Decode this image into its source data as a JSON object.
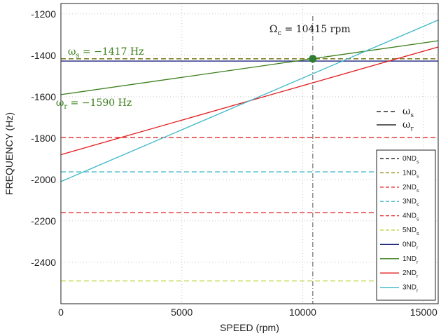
{
  "chart_data": {
    "type": "line",
    "xlabel": "SPEED (rpm)",
    "ylabel": "FREQUENCY (Hz)",
    "xlim": [
      0,
      15600
    ],
    "ylim": [
      -2600,
      -1150
    ],
    "x_ticks": [
      0,
      5000,
      10000,
      15000
    ],
    "y_ticks": [
      -1200,
      -1400,
      -1600,
      -1800,
      -2000,
      -2200,
      -2400
    ],
    "grid": true,
    "legend_placement": "lower-right",
    "colors": {
      "black": "#000000",
      "olive": "#7f7f00",
      "red": "#e31a1c",
      "cyan": "#3fb8c8",
      "yellowgreen": "#b7d22c",
      "navy": "#1a237e",
      "green": "#3a7f1a",
      "marker": "#2e7d32"
    },
    "series": [
      {
        "name": "0ND",
        "sub": "s",
        "style": "dashed",
        "color": "#000000",
        "x": [
          0,
          15600
        ],
        "y": [
          -1417,
          -1417
        ]
      },
      {
        "name": "1ND",
        "sub": "s",
        "style": "dashed",
        "color": "#7f7f00",
        "x": [
          0,
          15600
        ],
        "y": [
          -1417,
          -1417
        ]
      },
      {
        "name": "2ND",
        "sub": "s",
        "style": "dashed",
        "color": "#e31a1c",
        "x": [
          0,
          15600
        ],
        "y": [
          -1797,
          -1797
        ]
      },
      {
        "name": "3ND",
        "sub": "s",
        "style": "dashed",
        "color": "#3fb8c8",
        "x": [
          0,
          15600
        ],
        "y": [
          -1963,
          -1963
        ]
      },
      {
        "name": "4ND",
        "sub": "s",
        "style": "dashed",
        "color": "#e31a1c",
        "x": [
          0,
          15600
        ],
        "y": [
          -2160,
          -2160
        ]
      },
      {
        "name": "5ND",
        "sub": "s",
        "style": "dashed",
        "color": "#b7d22c",
        "x": [
          0,
          15600
        ],
        "y": [
          -2490,
          -2490
        ]
      },
      {
        "name": "0ND",
        "sub": "r",
        "style": "solid",
        "color": "#1a237e",
        "x": [
          0,
          15600
        ],
        "y": [
          -1428,
          -1428
        ]
      },
      {
        "name": "1ND",
        "sub": "r",
        "style": "solid",
        "color": "#3a7f1a",
        "x": [
          0,
          15600
        ],
        "y": [
          -1590,
          -1330
        ]
      },
      {
        "name": "2ND",
        "sub": "r",
        "style": "solid",
        "color": "#e31a1c",
        "x": [
          0,
          15600
        ],
        "y": [
          -1880,
          -1360
        ]
      },
      {
        "name": "3ND",
        "sub": "r",
        "style": "solid",
        "color": "#3fb8c8",
        "x": [
          0,
          15600
        ],
        "y": [
          -2010,
          -1230
        ]
      }
    ],
    "critical_speed": {
      "x": 10415,
      "y": -1417,
      "label": "Ωc = 10415 rpm"
    },
    "annotations": [
      {
        "text": "ωs = −1417 Hz",
        "color": "#3a7f1a"
      },
      {
        "text": "ωr = −1590 Hz",
        "color": "#3a7f1a"
      }
    ],
    "style_legend": [
      {
        "label": "ωs",
        "style": "dashed"
      },
      {
        "label": "ωr",
        "style": "solid"
      }
    ]
  }
}
